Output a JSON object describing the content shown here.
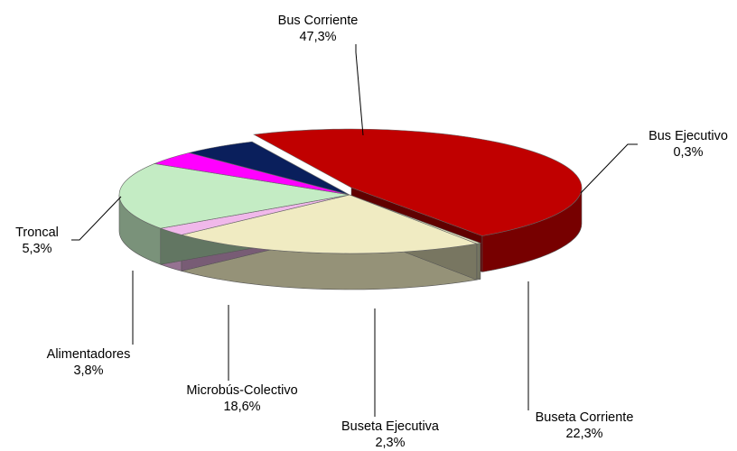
{
  "chart_data": {
    "type": "pie",
    "style": "3d-exploded-one-slice",
    "legend": "none",
    "slices": [
      {
        "name": "Bus Corriente",
        "label": "47,3%",
        "value": 47.3,
        "color": "#c00000"
      },
      {
        "name": "Bus Ejecutivo",
        "label": "0,3%",
        "value": 0.3,
        "color": "#e8e8c0"
      },
      {
        "name": "Buseta Corriente",
        "label": "22,3%",
        "value": 22.3,
        "color": "#f0ebc2"
      },
      {
        "name": "Buseta Ejecutiva",
        "label": "2,3%",
        "value": 2.3,
        "color": "#f0b8ea"
      },
      {
        "name": "Microbús-Colectivo",
        "label": "18,6%",
        "value": 18.6,
        "color": "#c4ecc4"
      },
      {
        "name": "Alimentadores",
        "label": "3,8%",
        "value": 3.8,
        "color": "#ff00ff"
      },
      {
        "name": "Troncal",
        "label": "5,3%",
        "value": 5.3,
        "color": "#0a1f5c"
      }
    ]
  }
}
